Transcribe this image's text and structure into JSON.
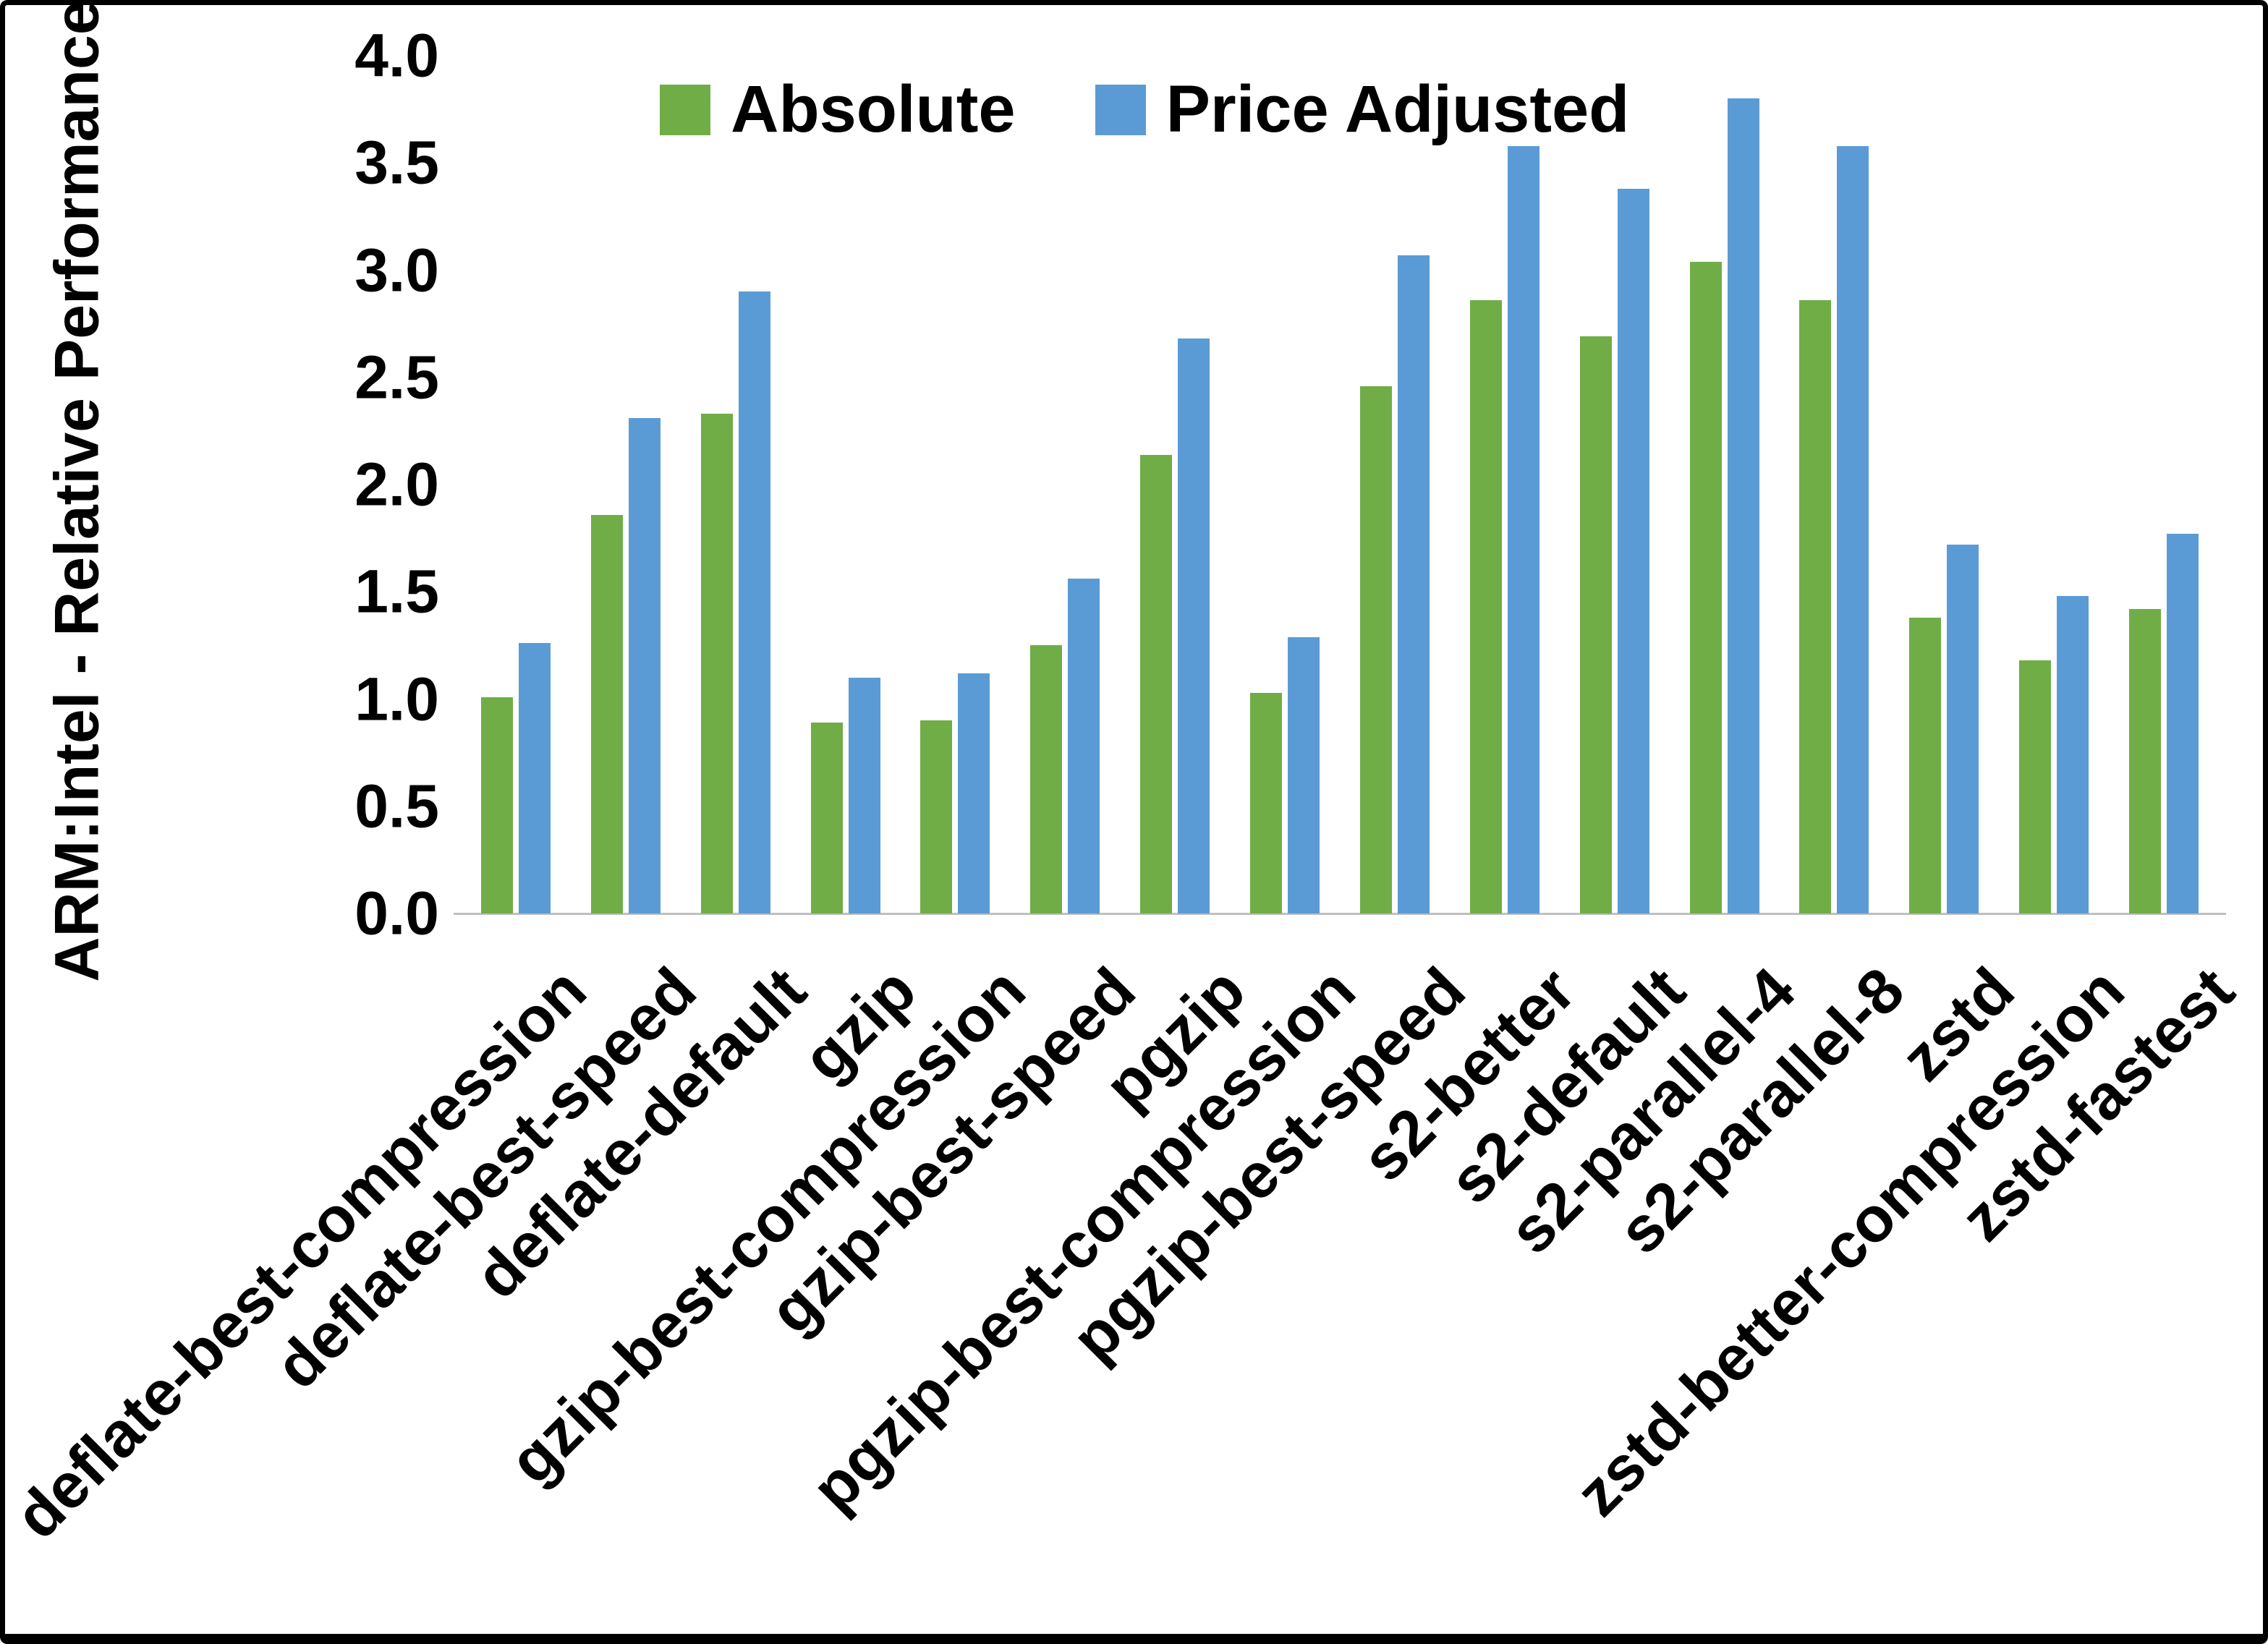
{
  "page": {
    "background": "#ffffff",
    "border_color": "#000000"
  },
  "chart_data": {
    "type": "bar",
    "title": "",
    "xlabel": "",
    "ylabel": "ARM:Intel - Relative Performance",
    "ylim": [
      0,
      4.0
    ],
    "ytick_step": 0.5,
    "grid": false,
    "legend_position": "top-center",
    "categories": [
      "deflate-best-compression",
      "deflate-best-speed",
      "deflate-default",
      "gzip",
      "gzip-best-compression",
      "gzip-best-speed",
      "pgzip",
      "pgzip-best-compression",
      "pgzip-best-speed",
      "s2-better",
      "s2-default",
      "s2-parallel-4",
      "s2-parallel-8",
      "zstd",
      "zstd-better-compression",
      "zstd-fastest"
    ],
    "series": [
      {
        "name": "Absolute",
        "color": "#70AD47",
        "values": [
          1.01,
          1.86,
          2.33,
          0.89,
          0.9,
          1.25,
          2.14,
          1.03,
          2.46,
          2.86,
          2.69,
          3.04,
          2.86,
          1.38,
          1.18,
          1.42
        ]
      },
      {
        "name": "Price Adjusted",
        "color": "#5B9BD5",
        "values": [
          1.26,
          2.31,
          2.9,
          1.1,
          1.12,
          1.56,
          2.68,
          1.29,
          3.07,
          3.58,
          3.38,
          3.8,
          3.58,
          1.72,
          1.48,
          1.77
        ]
      }
    ]
  }
}
